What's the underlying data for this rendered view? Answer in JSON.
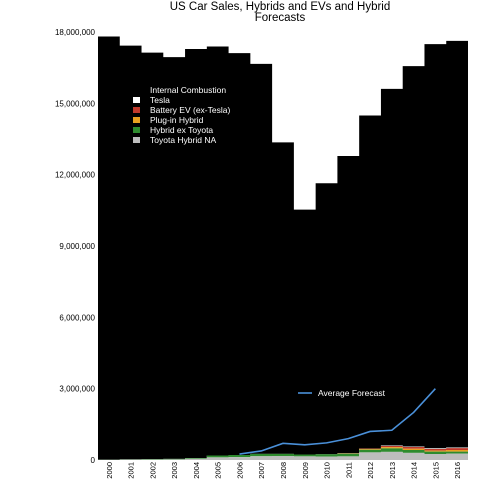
{
  "chart_data": {
    "type": "area",
    "title_line1": "US Car Sales, Hybrids and EVs and Hybrid",
    "title_line2": "Forecasts",
    "x": [
      "2000",
      "2001",
      "2002",
      "2003",
      "2004",
      "2005",
      "2006",
      "2007",
      "2008",
      "2009",
      "2010",
      "2011",
      "2012",
      "2013",
      "2014",
      "2015",
      "2016"
    ],
    "ylim": [
      0,
      18000000
    ],
    "yticks": [
      0,
      3000000,
      6000000,
      9000000,
      12000000,
      15000000,
      18000000
    ],
    "ytick_labels": [
      "0",
      "3,000,000",
      "6,000,000",
      "9,000,000",
      "12,000,000",
      "15,000,000",
      "18,000,000"
    ],
    "legend_position": "top-left",
    "series": [
      {
        "name": "Toyota Hybrid NA",
        "color": "#bdbdbd",
        "values": [
          5000,
          15000,
          20000,
          25000,
          50000,
          110000,
          120000,
          160000,
          170000,
          150000,
          140000,
          150000,
          320000,
          340000,
          300000,
          250000,
          270000
        ]
      },
      {
        "name": "Hybrid ex Toyota",
        "color": "#2e8b2e",
        "values": [
          5000,
          10000,
          15000,
          20000,
          35000,
          80000,
          90000,
          100000,
          90000,
          80000,
          100000,
          120000,
          110000,
          150000,
          120000,
          100000,
          80000
        ]
      },
      {
        "name": "Plug-in Hybrid",
        "color": "#e8a020",
        "values": [
          0,
          0,
          0,
          0,
          0,
          0,
          0,
          0,
          0,
          0,
          300,
          7500,
          38000,
          50000,
          55000,
          43000,
          73000
        ]
      },
      {
        "name": "Battery EV (ex-Tesla)",
        "color": "#c0392b",
        "values": [
          0,
          0,
          0,
          0,
          0,
          0,
          0,
          0,
          0,
          0,
          100,
          10000,
          15000,
          50000,
          70000,
          70000,
          75000
        ]
      },
      {
        "name": "Tesla",
        "color": "#ffffff",
        "values": [
          0,
          0,
          0,
          0,
          0,
          0,
          0,
          0,
          0,
          0,
          0,
          0,
          3000,
          18000,
          18000,
          26000,
          30000
        ]
      },
      {
        "name": "Internal Combustion",
        "color": "#000000",
        "values": [
          17800000,
          17400000,
          17100000,
          16900000,
          17200000,
          17200000,
          16900000,
          16400000,
          13100000,
          10300000,
          11400000,
          12500000,
          14000000,
          15000000,
          16000000,
          17000000,
          17100000
        ]
      }
    ],
    "forecast": {
      "name": "Average Forecast",
      "color": "#4a90d9",
      "x": [
        "2006",
        "2007",
        "2008",
        "2009",
        "2010",
        "2011",
        "2012",
        "2013",
        "2014",
        "2015"
      ],
      "values": [
        250000,
        380000,
        700000,
        640000,
        720000,
        900000,
        1200000,
        1250000,
        2000000,
        3000000
      ]
    }
  }
}
